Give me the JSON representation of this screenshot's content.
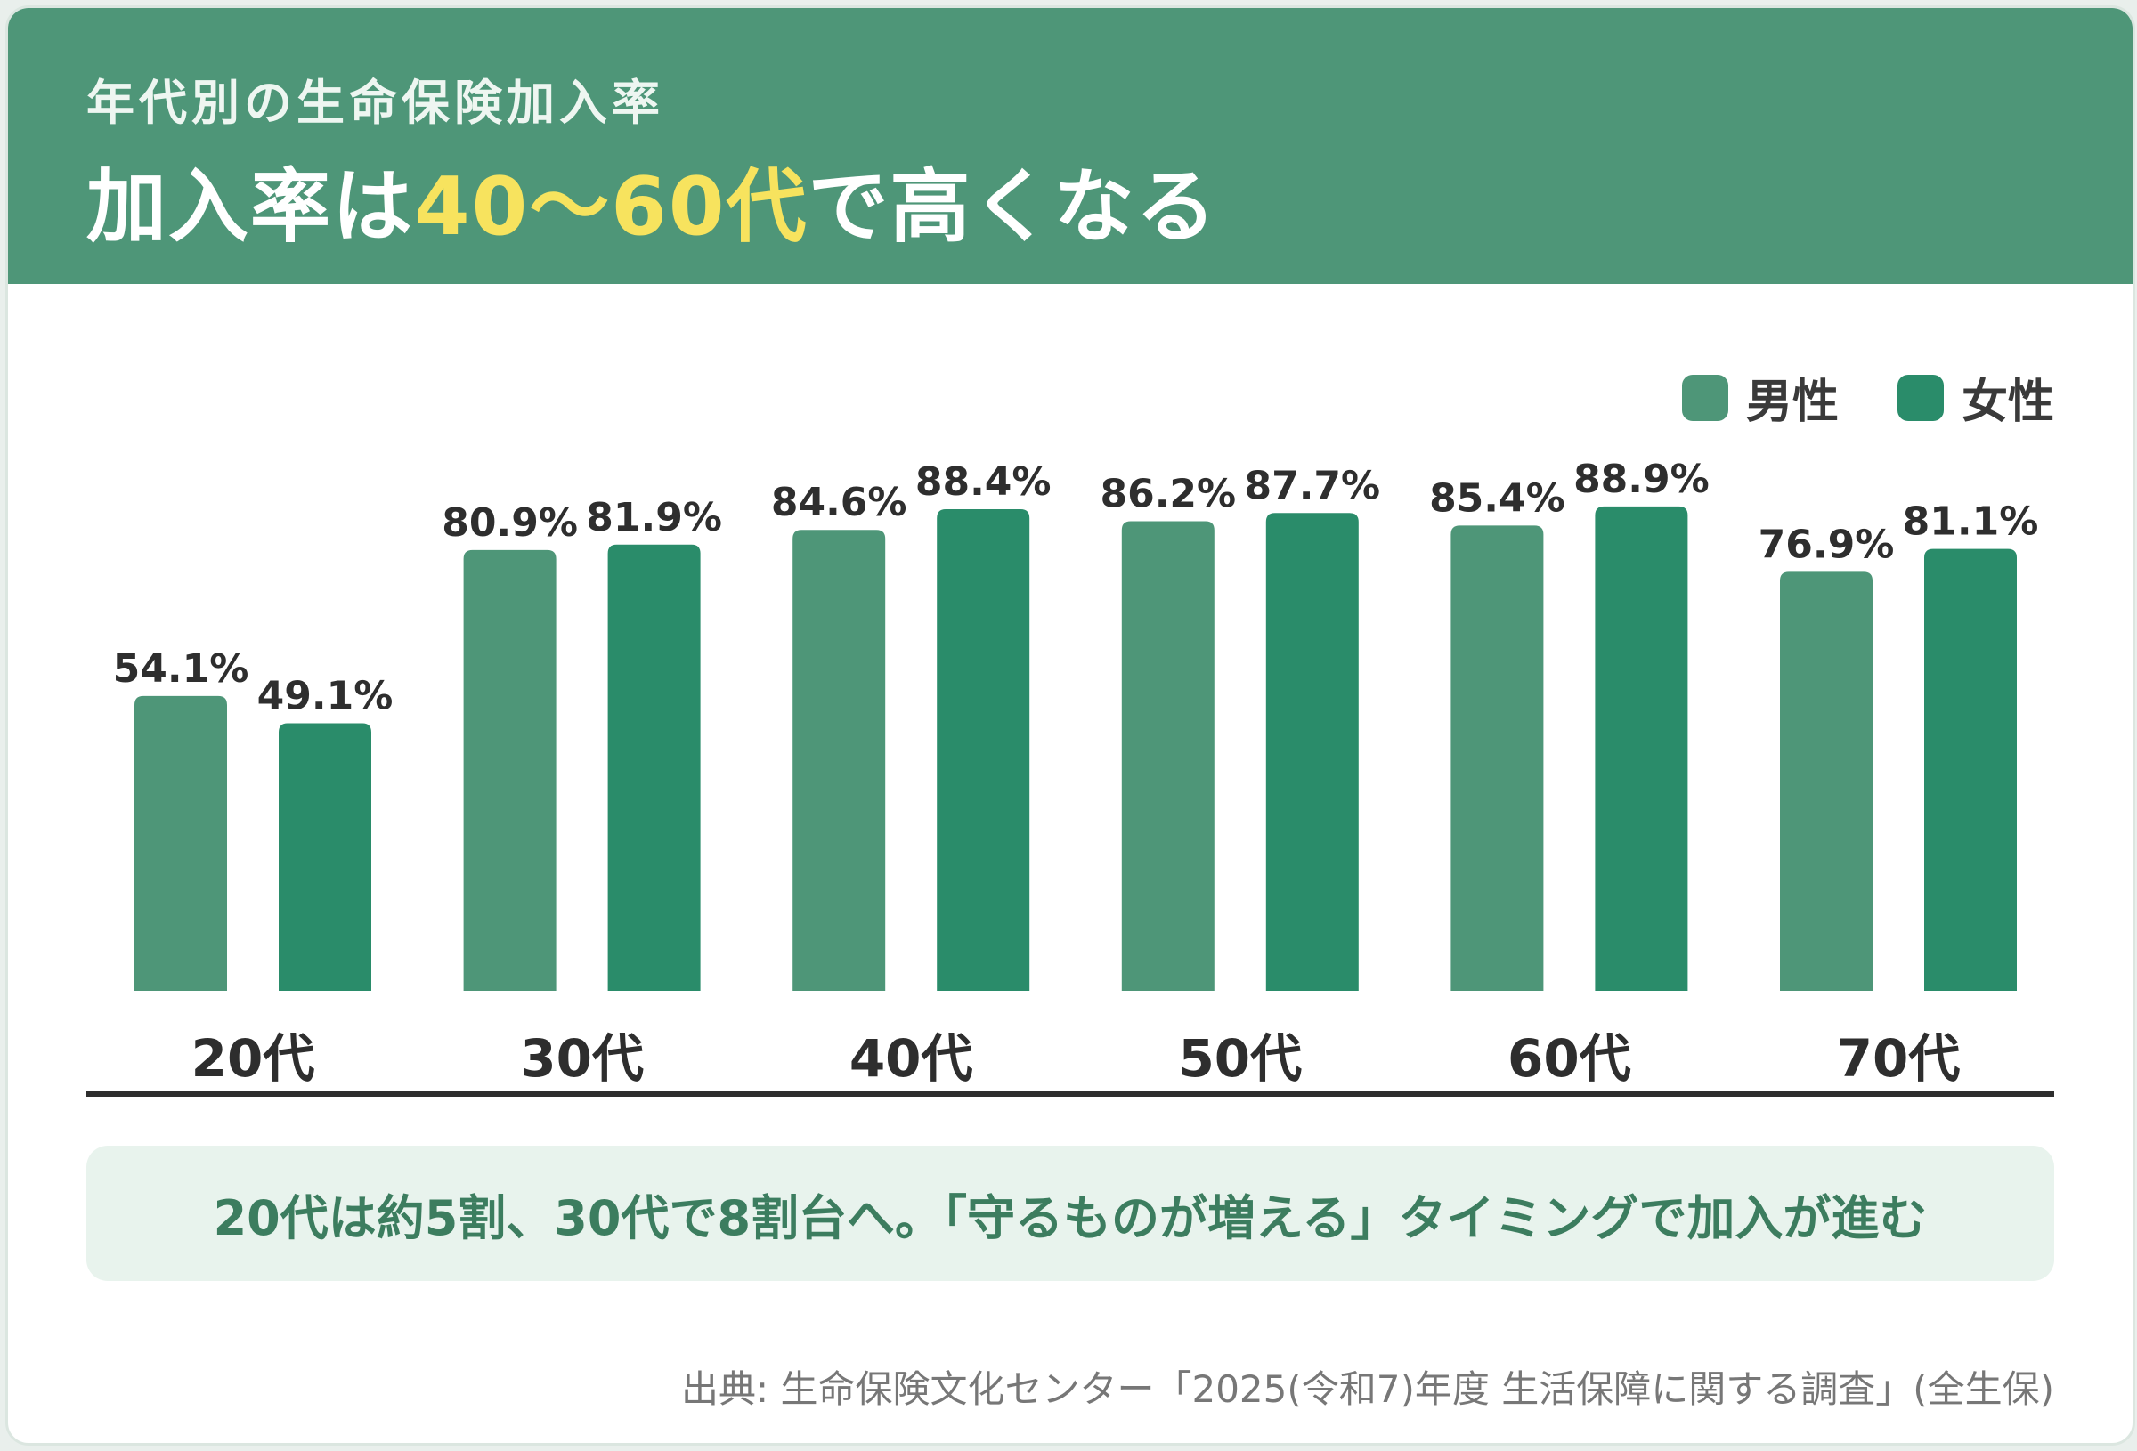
{
  "header": {
    "subtitle": "年代別の生命保険加入率",
    "headline_prefix": "加入率は",
    "headline_highlight": "40〜60代",
    "headline_suffix": "で高くなる",
    "highlight_color": "#f7e35e",
    "background_color": "#4e9678"
  },
  "legend": {
    "male_label": "男性",
    "female_label": "女性"
  },
  "chart_data": {
    "type": "bar",
    "categories": [
      "20代",
      "30代",
      "40代",
      "50代",
      "60代",
      "70代"
    ],
    "series": [
      {
        "name": "男性",
        "values": [
          54.1,
          80.9,
          84.6,
          86.2,
          85.4,
          76.9
        ],
        "color": "#4e9678"
      },
      {
        "name": "女性",
        "values": [
          49.1,
          81.9,
          88.4,
          87.7,
          88.9,
          81.1
        ],
        "color": "#2a8c6a"
      }
    ],
    "value_suffix": "%",
    "ylim": [
      0,
      100
    ],
    "grid": false,
    "legend_position": "top-right"
  },
  "note": {
    "text": "20代は約5割、30代で8割台へ。「守るものが増える」タイミングで加入が進む"
  },
  "source": {
    "text": "出典: 生命保険文化センター「2025(令和7)年度 生活保障に関する調査」(全生保)"
  }
}
